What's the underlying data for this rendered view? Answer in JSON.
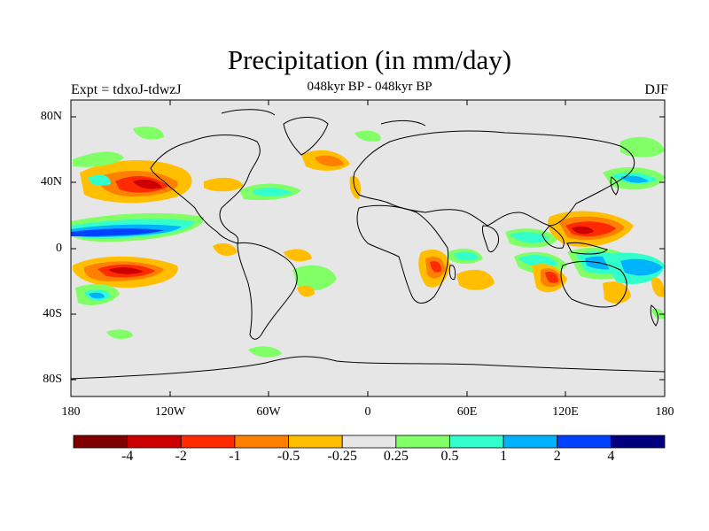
{
  "title": "Precipitation (in mm/day)",
  "subtitle": "048kyr BP - 048kyr BP",
  "left_label": "Expt = tdxoJ-tdwzJ",
  "right_label": "DJF",
  "lat_labels": [
    "80N",
    "40N",
    "0",
    "40S",
    "80S"
  ],
  "lon_labels": [
    "180",
    "120W",
    "60W",
    "0",
    "60E",
    "120E",
    "180"
  ],
  "colorbar": {
    "colors": [
      "#7f0000",
      "#cc0000",
      "#ff2a00",
      "#ff7f00",
      "#ffbf00",
      "#e6e6e6",
      "#80ff66",
      "#33ffcc",
      "#00b3ff",
      "#0040ff",
      "#00007f"
    ],
    "labels": [
      "-4",
      "-2",
      "-1",
      "-0.5",
      "-0.25",
      "0.25",
      "0.5",
      "1",
      "2",
      "4"
    ]
  }
}
